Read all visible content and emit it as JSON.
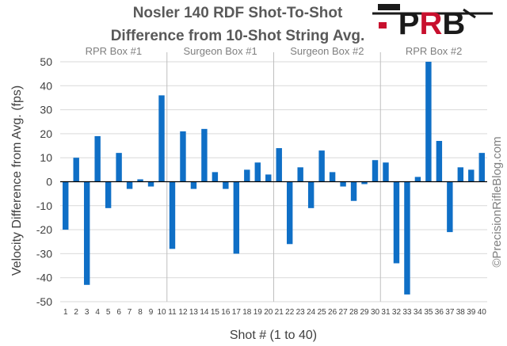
{
  "chart_data": {
    "type": "bar",
    "title": [
      "Nosler 140 RDF Shot-To-Shot",
      "Difference from 10-Shot String Avg."
    ],
    "xlabel": "Shot # (1 to 40)",
    "ylabel": "Velocity Difference from Avg. (fps)",
    "ylim": [
      -50,
      50
    ],
    "yticks": [
      50,
      40,
      30,
      20,
      10,
      0,
      -10,
      -20,
      -30,
      -40,
      -50
    ],
    "categories": [
      "1",
      "2",
      "3",
      "4",
      "5",
      "6",
      "7",
      "8",
      "9",
      "10",
      "11",
      "12",
      "13",
      "14",
      "15",
      "16",
      "17",
      "18",
      "19",
      "20",
      "21",
      "22",
      "23",
      "24",
      "25",
      "26",
      "27",
      "28",
      "29",
      "30",
      "31",
      "32",
      "33",
      "34",
      "35",
      "36",
      "37",
      "38",
      "39",
      "40"
    ],
    "values": [
      -20,
      10,
      -43,
      19,
      -11,
      12,
      -3,
      1,
      -2,
      36,
      -28,
      21,
      -3,
      22,
      4,
      -3,
      -30,
      5,
      8,
      3,
      14,
      -26,
      6,
      -11,
      13,
      4,
      -2,
      -8,
      -1,
      9,
      8,
      -34,
      -47,
      2,
      53,
      17,
      -21,
      6,
      5,
      12
    ],
    "groups": [
      "RPR Box #1",
      "Surgeon Box #1",
      "Surgeon Box #2",
      "RPR Box #2"
    ],
    "grid": true,
    "bar_color": "#0f6fc6"
  },
  "logo": {
    "text": "PRB"
  },
  "credit": "©PrecisionRifleBlog.com"
}
